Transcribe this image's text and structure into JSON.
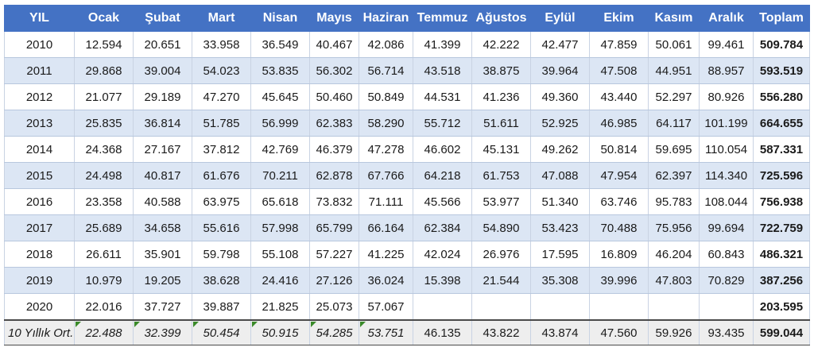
{
  "headers": [
    "YIL",
    "Ocak",
    "Şubat",
    "Mart",
    "Nisan",
    "Mayıs",
    "Haziran",
    "Temmuz",
    "Ağustos",
    "Eylül",
    "Ekim",
    "Kasım",
    "Aralık",
    "Toplam"
  ],
  "rows": [
    {
      "year": "2010",
      "values": [
        "12.594",
        "20.651",
        "33.958",
        "36.549",
        "40.467",
        "42.086",
        "41.399",
        "42.222",
        "42.477",
        "47.859",
        "50.061",
        "99.461"
      ],
      "total": "509.784"
    },
    {
      "year": "2011",
      "values": [
        "29.868",
        "39.004",
        "54.023",
        "53.835",
        "56.302",
        "56.714",
        "43.518",
        "38.875",
        "39.964",
        "47.508",
        "44.951",
        "88.957"
      ],
      "total": "593.519"
    },
    {
      "year": "2012",
      "values": [
        "21.077",
        "29.189",
        "47.270",
        "45.645",
        "50.460",
        "50.849",
        "44.531",
        "41.236",
        "49.360",
        "43.440",
        "52.297",
        "80.926"
      ],
      "total": "556.280"
    },
    {
      "year": "2013",
      "values": [
        "25.835",
        "36.814",
        "51.785",
        "56.999",
        "62.383",
        "58.290",
        "55.712",
        "51.611",
        "52.925",
        "46.985",
        "64.117",
        "101.199"
      ],
      "total": "664.655"
    },
    {
      "year": "2014",
      "values": [
        "24.368",
        "27.167",
        "37.812",
        "42.769",
        "46.379",
        "47.278",
        "46.602",
        "45.131",
        "49.262",
        "50.814",
        "59.695",
        "110.054"
      ],
      "total": "587.331"
    },
    {
      "year": "2015",
      "values": [
        "24.498",
        "40.817",
        "61.676",
        "70.211",
        "62.878",
        "67.766",
        "64.218",
        "61.753",
        "47.088",
        "47.954",
        "62.397",
        "114.340"
      ],
      "total": "725.596"
    },
    {
      "year": "2016",
      "values": [
        "23.358",
        "40.588",
        "63.975",
        "65.618",
        "73.832",
        "71.111",
        "45.566",
        "53.977",
        "51.340",
        "63.746",
        "95.783",
        "108.044"
      ],
      "total": "756.938"
    },
    {
      "year": "2017",
      "values": [
        "25.689",
        "34.658",
        "55.616",
        "57.998",
        "65.799",
        "66.164",
        "62.384",
        "54.890",
        "53.423",
        "70.488",
        "75.956",
        "99.694"
      ],
      "total": "722.759"
    },
    {
      "year": "2018",
      "values": [
        "26.611",
        "35.901",
        "59.798",
        "55.108",
        "57.227",
        "41.225",
        "42.024",
        "26.976",
        "17.595",
        "16.809",
        "46.204",
        "60.843"
      ],
      "total": "486.321"
    },
    {
      "year": "2019",
      "values": [
        "10.979",
        "19.205",
        "38.628",
        "24.416",
        "27.126",
        "36.024",
        "15.398",
        "21.544",
        "35.308",
        "39.996",
        "47.803",
        "70.829"
      ],
      "total": "387.256"
    },
    {
      "year": "2020",
      "values": [
        "22.016",
        "37.727",
        "39.887",
        "21.825",
        "25.073",
        "57.067",
        "",
        "",
        "",
        "",
        "",
        ""
      ],
      "total": "203.595"
    }
  ],
  "average": {
    "label": "10 Yıllık Ort.",
    "values": [
      "22.488",
      "32.399",
      "50.454",
      "50.915",
      "54.285",
      "53.751",
      "46.135",
      "43.822",
      "43.874",
      "47.560",
      "59.926",
      "93.435"
    ],
    "total": "599.044"
  },
  "colors": {
    "header_bg": "#4472c4",
    "band_bg": "#dce6f4",
    "avg_bg": "#eeeeee",
    "error_marker": "#3a8a2a"
  }
}
